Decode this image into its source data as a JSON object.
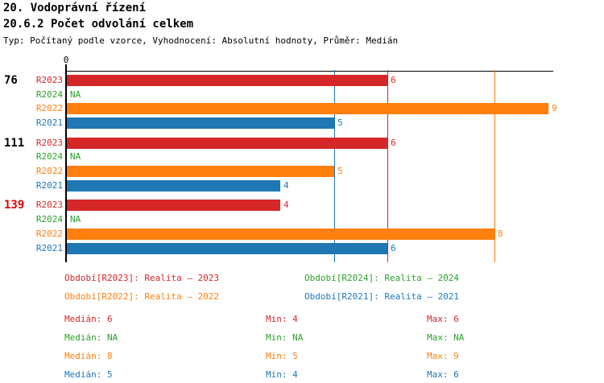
{
  "header": {
    "title_line1": "20. Vodoprávní řízení",
    "title_line2": "20.6.2 Počet odvolání celkem",
    "subtitle": "Typ: Počítaný podle vzorce, Vyhodnocení: Absolutní hodnoty, Průměr: Medián"
  },
  "colors": {
    "red": "#d62728",
    "green": "#2ca02c",
    "orange": "#ff7f0e",
    "blue": "#1f77b4",
    "black": "#000000",
    "highlight_red": "#e00000"
  },
  "chart_data": {
    "type": "bar",
    "orientation": "horizontal",
    "title": "20.6.2 Počet odvolání celkem",
    "axis": {
      "origin_label": "0",
      "x_min": 0,
      "x_max": 9,
      "grid": false
    },
    "na_text": "NA",
    "series_colors": {
      "R2023": "red",
      "R2024": "green",
      "R2022": "orange",
      "R2021": "blue"
    },
    "groups": [
      {
        "label": "76",
        "highlight": false,
        "bars": [
          {
            "series": "R2023",
            "value": 6
          },
          {
            "series": "R2024",
            "value": null
          },
          {
            "series": "R2022",
            "value": 9
          },
          {
            "series": "R2021",
            "value": 5
          }
        ]
      },
      {
        "label": "111",
        "highlight": false,
        "bars": [
          {
            "series": "R2023",
            "value": 6
          },
          {
            "series": "R2024",
            "value": null
          },
          {
            "series": "R2022",
            "value": 5
          },
          {
            "series": "R2021",
            "value": 4
          }
        ]
      },
      {
        "label": "139",
        "highlight": true,
        "bars": [
          {
            "series": "R2023",
            "value": 4
          },
          {
            "series": "R2024",
            "value": null
          },
          {
            "series": "R2022",
            "value": 8
          },
          {
            "series": "R2021",
            "value": 6
          }
        ]
      }
    ],
    "median_lines": [
      {
        "series": "R2021",
        "value": 5
      },
      {
        "series": "R2023",
        "value": 6
      },
      {
        "series": "R2022",
        "value": 8
      }
    ]
  },
  "legend": {
    "items": [
      {
        "label": "Období[R2023]: Realita – 2023",
        "color": "red"
      },
      {
        "label": "Období[R2024]: Realita – 2024",
        "color": "green"
      },
      {
        "label": "Období[R2022]: Realita – 2022",
        "color": "orange"
      },
      {
        "label": "Období[R2021]: Realita – 2021",
        "color": "blue"
      }
    ]
  },
  "stats": {
    "rows": [
      {
        "color": "red",
        "median": "Medián: 6",
        "min": "Min: 4",
        "max": "Max: 6"
      },
      {
        "color": "green",
        "median": "Medián: NA",
        "min": "Min: NA",
        "max": "Max: NA"
      },
      {
        "color": "orange",
        "median": "Medián: 8",
        "min": "Min: 5",
        "max": "Max: 9"
      },
      {
        "color": "blue",
        "median": "Medián: 5",
        "min": "Min: 4",
        "max": "Max: 6"
      }
    ]
  }
}
